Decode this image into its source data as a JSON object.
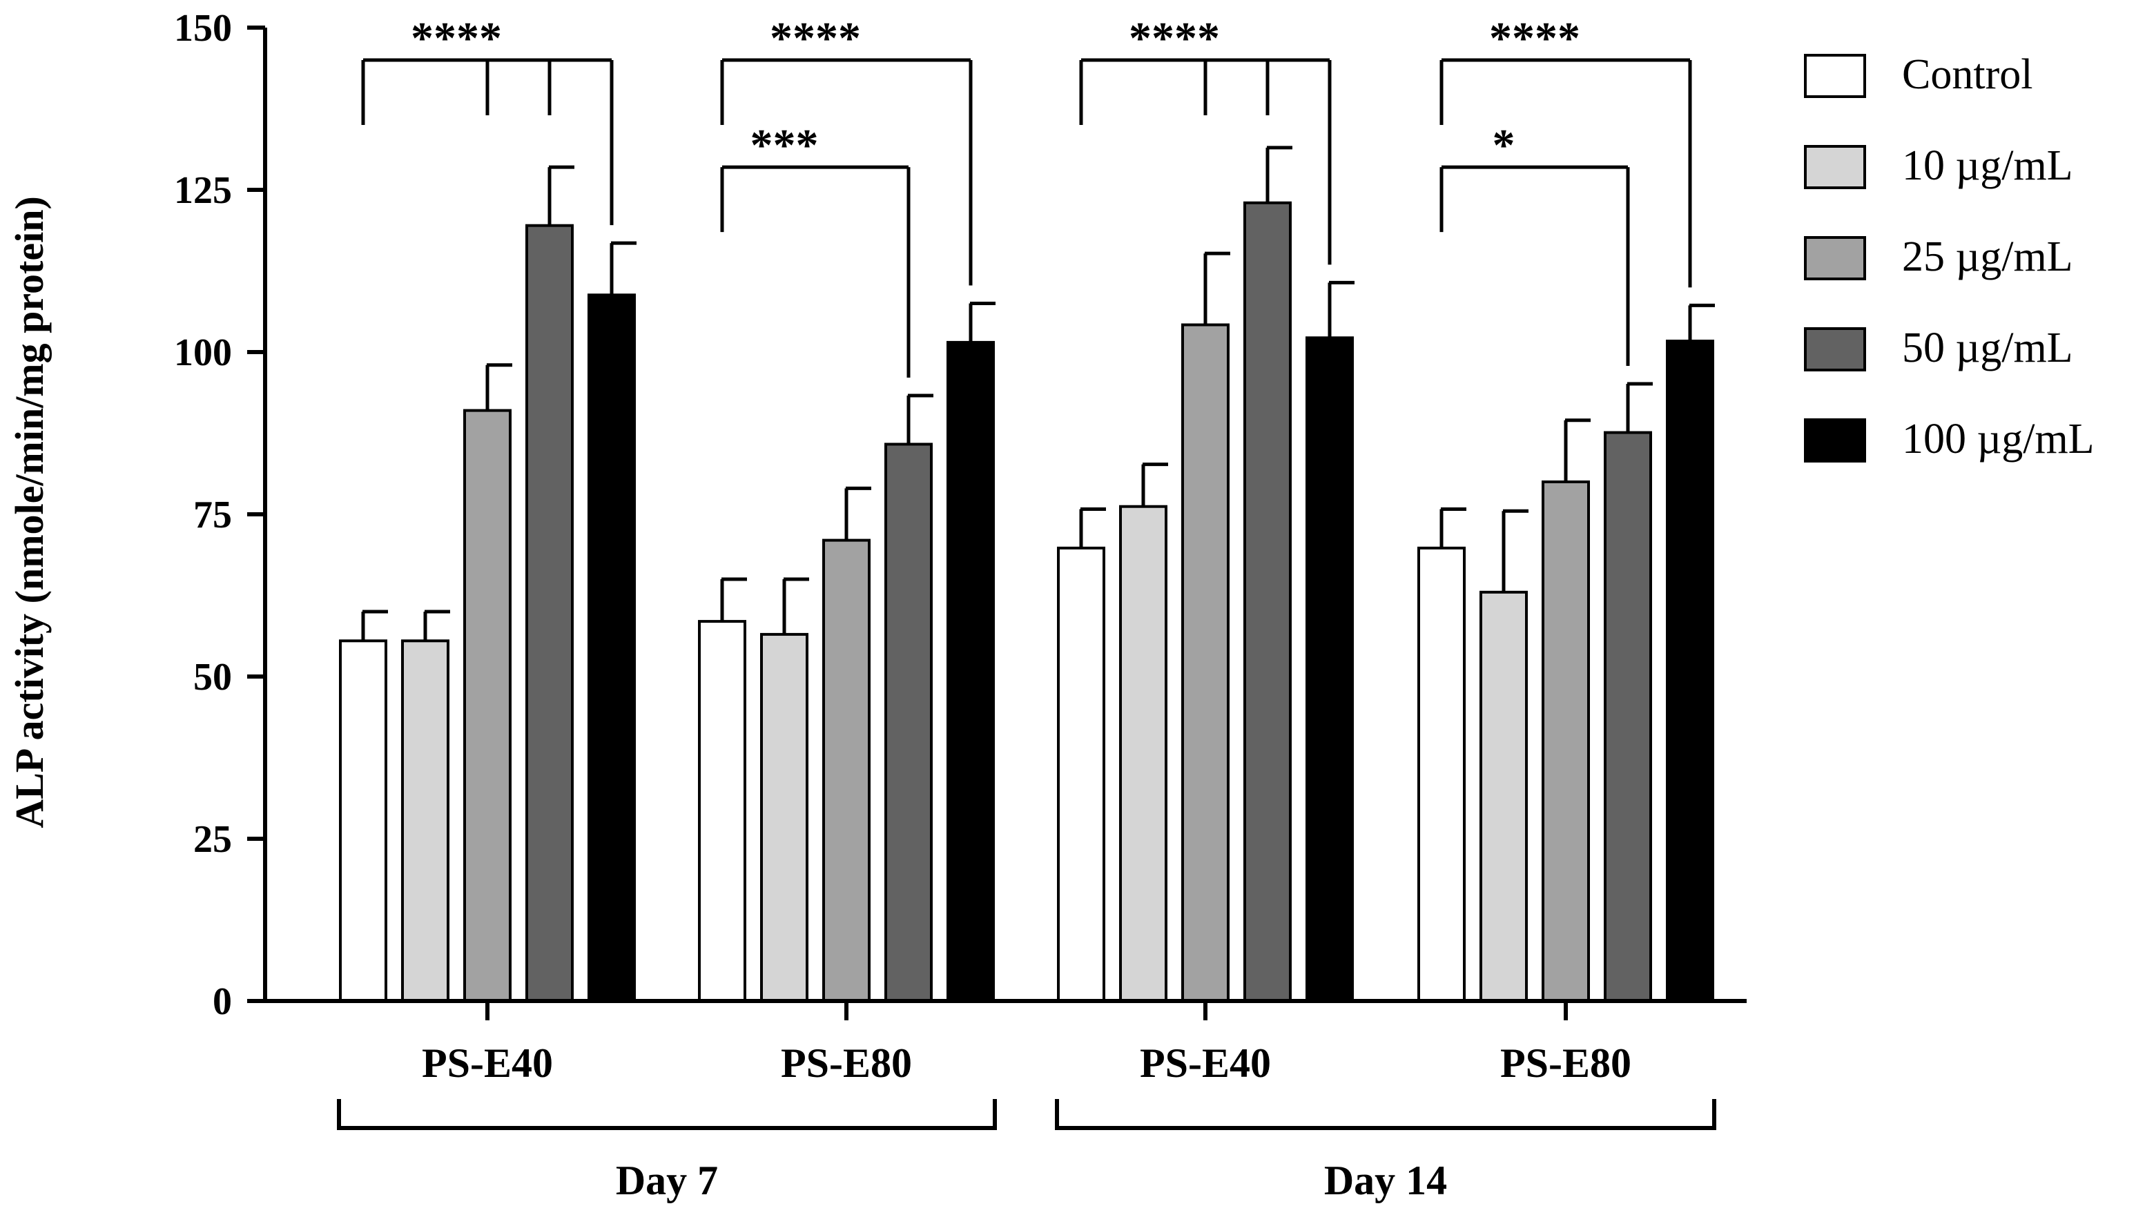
{
  "chart_data": {
    "type": "bar",
    "title": "",
    "xlabel": "",
    "ylabel": "ALP activity (nmole/min/mg protein)",
    "ylim": [
      0,
      150
    ],
    "yticks": [
      0,
      25,
      50,
      75,
      100,
      125,
      150
    ],
    "grid": false,
    "legend_position": "right",
    "categories": [
      "PS-E40",
      "PS-E80",
      "PS-E40",
      "PS-E80"
    ],
    "timepoints": [
      {
        "label": "Day 7",
        "categories": [
          0,
          1
        ]
      },
      {
        "label": "Day 14",
        "categories": [
          2,
          3
        ]
      }
    ],
    "series": [
      {
        "name": "Control",
        "color": "#ffffff",
        "values": [
          55.5,
          58.5,
          69.8,
          69.8
        ],
        "errors": [
          4.5,
          6.5,
          6,
          6
        ]
      },
      {
        "name": "10 µg/mL",
        "color": "#d5d5d5",
        "values": [
          55.5,
          56.5,
          76.2,
          63.0
        ],
        "errors": [
          4.5,
          8.5,
          6.5,
          12.5
        ]
      },
      {
        "name": "25 µg/mL",
        "color": "#a2a2a2",
        "values": [
          91.0,
          71.0,
          104.2,
          80.0
        ],
        "errors": [
          7,
          8,
          11,
          9.5
        ]
      },
      {
        "name": "50 µg/mL",
        "color": "#626262",
        "values": [
          119.5,
          85.8,
          123.0,
          87.6
        ],
        "errors": [
          9,
          7.5,
          8.5,
          7.5
        ]
      },
      {
        "name": "100 µg/mL",
        "color": "#000000",
        "values": [
          108.8,
          101.5,
          102.2,
          101.7
        ],
        "errors": [
          8,
          6,
          8.5,
          5.5
        ]
      }
    ],
    "significance": [
      {
        "category": 0,
        "from": 0,
        "to": [
          4,
          3,
          2
        ],
        "y": 145,
        "label": "****"
      },
      {
        "category": 1,
        "from": 0,
        "to": [
          4
        ],
        "y": 145,
        "label": "****"
      },
      {
        "category": 1,
        "from": 0,
        "to": [
          3
        ],
        "y": 128.5,
        "label": "***"
      },
      {
        "category": 2,
        "from": 0,
        "to": [
          4,
          3,
          2
        ],
        "y": 145,
        "label": "****"
      },
      {
        "category": 3,
        "from": 0,
        "to": [
          4
        ],
        "y": 145,
        "label": "****"
      },
      {
        "category": 3,
        "from": 0,
        "to": [
          3
        ],
        "y": 128.5,
        "label": "*"
      }
    ]
  }
}
